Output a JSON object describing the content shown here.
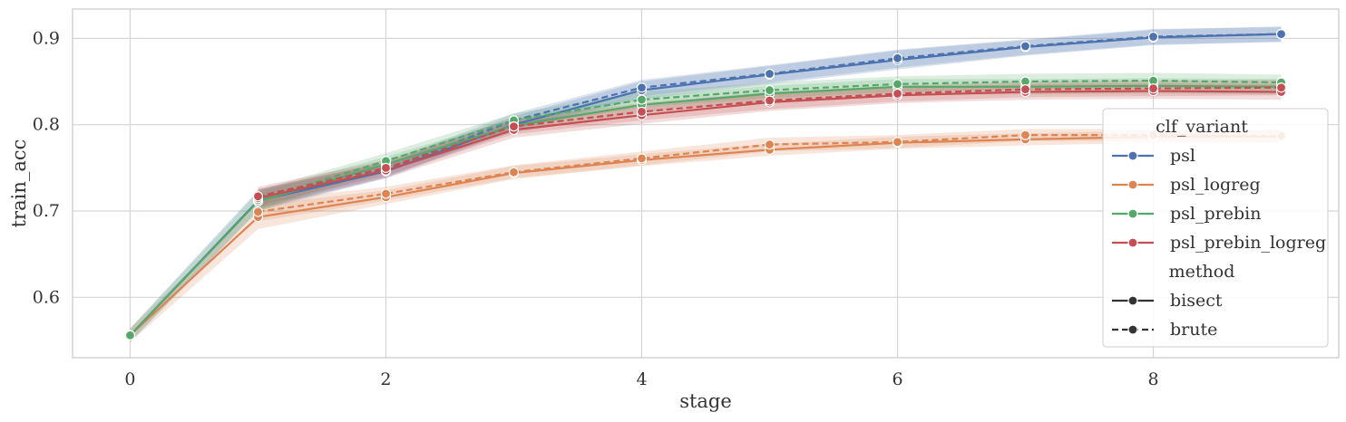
{
  "chart_data": {
    "type": "line",
    "xlabel": "stage",
    "ylabel": "train_acc",
    "xlim": [
      -0.45,
      9.45
    ],
    "ylim": [
      0.53,
      0.934
    ],
    "x_ticks": [
      "0",
      "2",
      "4",
      "6",
      "8"
    ],
    "x_tick_values": [
      0,
      2,
      4,
      6,
      8
    ],
    "y_ticks": [
      "0.6",
      "0.7",
      "0.8",
      "0.9"
    ],
    "y_tick_values": [
      0.6,
      0.7,
      0.8,
      0.9
    ],
    "grid": true,
    "legend_placement": "center-right",
    "legend": {
      "hue_title": "clf_variant",
      "style_title": "method",
      "style_entries": [
        {
          "name": "bisect",
          "dash": "solid"
        },
        {
          "name": "brute",
          "dash": "dashed"
        }
      ]
    },
    "series": [
      {
        "variant": "psl",
        "method": "bisect",
        "color": "#4c72b0",
        "x": [
          0,
          1,
          2,
          3,
          4,
          5,
          6,
          7,
          8,
          9
        ],
        "values": [
          0.556,
          0.712,
          0.746,
          0.8,
          0.84,
          0.858,
          0.875,
          0.89,
          0.901,
          0.905
        ],
        "ci_low": [
          0.548,
          0.7,
          0.738,
          0.793,
          0.83,
          0.847,
          0.864,
          0.88,
          0.892,
          0.896
        ],
        "ci_high": [
          0.564,
          0.724,
          0.755,
          0.81,
          0.85,
          0.868,
          0.886,
          0.898,
          0.91,
          0.914
        ]
      },
      {
        "variant": "psl",
        "method": "brute",
        "color": "#4c72b0",
        "x": [
          1,
          2,
          3,
          4,
          5,
          6,
          7,
          8,
          9
        ],
        "values": [
          0.713,
          0.748,
          0.805,
          0.843,
          0.859,
          0.877,
          0.891,
          0.902,
          0.905
        ],
        "ci_low": [
          0.702,
          0.739,
          0.795,
          0.833,
          0.849,
          0.866,
          0.881,
          0.893,
          0.896
        ],
        "ci_high": [
          0.725,
          0.757,
          0.813,
          0.852,
          0.869,
          0.887,
          0.899,
          0.911,
          0.913
        ]
      },
      {
        "variant": "psl_logreg",
        "method": "bisect",
        "color": "#dd8452",
        "x": [
          0,
          1,
          2,
          3,
          4,
          5,
          6,
          7,
          8,
          9
        ],
        "values": [
          0.556,
          0.693,
          0.716,
          0.744,
          0.759,
          0.771,
          0.779,
          0.783,
          0.786,
          0.786
        ],
        "ci_low": [
          0.548,
          0.679,
          0.708,
          0.737,
          0.752,
          0.764,
          0.772,
          0.776,
          0.779,
          0.779
        ],
        "ci_high": [
          0.564,
          0.707,
          0.724,
          0.752,
          0.766,
          0.778,
          0.786,
          0.79,
          0.793,
          0.794
        ]
      },
      {
        "variant": "psl_logreg",
        "method": "brute",
        "color": "#dd8452",
        "x": [
          1,
          2,
          3,
          4,
          5,
          6,
          7,
          8,
          9
        ],
        "values": [
          0.699,
          0.72,
          0.745,
          0.761,
          0.777,
          0.78,
          0.788,
          0.788,
          0.787
        ],
        "ci_low": [
          0.688,
          0.712,
          0.738,
          0.753,
          0.769,
          0.773,
          0.781,
          0.781,
          0.78
        ],
        "ci_high": [
          0.712,
          0.728,
          0.753,
          0.769,
          0.785,
          0.788,
          0.795,
          0.795,
          0.794
        ]
      },
      {
        "variant": "psl_prebin",
        "method": "bisect",
        "color": "#55a868",
        "x": [
          0,
          1,
          2,
          3,
          4,
          5,
          6,
          7,
          8,
          9
        ],
        "values": [
          0.556,
          0.711,
          0.754,
          0.799,
          0.823,
          0.836,
          0.844,
          0.844,
          0.845,
          0.844
        ],
        "ci_low": [
          0.548,
          0.7,
          0.745,
          0.791,
          0.814,
          0.827,
          0.835,
          0.835,
          0.836,
          0.835
        ],
        "ci_high": [
          0.564,
          0.722,
          0.763,
          0.807,
          0.832,
          0.845,
          0.853,
          0.853,
          0.854,
          0.853
        ]
      },
      {
        "variant": "psl_prebin",
        "method": "brute",
        "color": "#55a868",
        "x": [
          1,
          2,
          3,
          4,
          5,
          6,
          7,
          8,
          9
        ],
        "values": [
          0.713,
          0.758,
          0.805,
          0.829,
          0.84,
          0.847,
          0.85,
          0.851,
          0.849
        ],
        "ci_low": [
          0.702,
          0.749,
          0.797,
          0.82,
          0.831,
          0.838,
          0.841,
          0.842,
          0.84
        ],
        "ci_high": [
          0.724,
          0.767,
          0.813,
          0.838,
          0.849,
          0.856,
          0.859,
          0.86,
          0.858
        ]
      },
      {
        "variant": "psl_prebin_logreg",
        "method": "bisect",
        "color": "#c44e52",
        "x": [
          1,
          2,
          3,
          4,
          5,
          6,
          7,
          8,
          9
        ],
        "values": [
          0.715,
          0.747,
          0.794,
          0.811,
          0.826,
          0.834,
          0.838,
          0.839,
          0.838
        ],
        "ci_low": [
          0.704,
          0.738,
          0.785,
          0.801,
          0.816,
          0.825,
          0.829,
          0.83,
          0.829
        ],
        "ci_high": [
          0.726,
          0.756,
          0.803,
          0.821,
          0.836,
          0.843,
          0.847,
          0.848,
          0.847
        ]
      },
      {
        "variant": "psl_prebin_logreg",
        "method": "brute",
        "color": "#c44e52",
        "x": [
          1,
          2,
          3,
          4,
          5,
          6,
          7,
          8,
          9
        ],
        "values": [
          0.717,
          0.75,
          0.798,
          0.815,
          0.828,
          0.836,
          0.841,
          0.842,
          0.843
        ],
        "ci_low": [
          0.706,
          0.741,
          0.789,
          0.805,
          0.818,
          0.827,
          0.832,
          0.833,
          0.834
        ],
        "ci_high": [
          0.728,
          0.759,
          0.807,
          0.825,
          0.838,
          0.845,
          0.85,
          0.851,
          0.852
        ]
      }
    ],
    "variants": [
      {
        "name": "psl",
        "color": "#4c72b0"
      },
      {
        "name": "psl_logreg",
        "color": "#dd8452"
      },
      {
        "name": "psl_prebin",
        "color": "#55a868"
      },
      {
        "name": "psl_prebin_logreg",
        "color": "#c44e52"
      }
    ]
  }
}
